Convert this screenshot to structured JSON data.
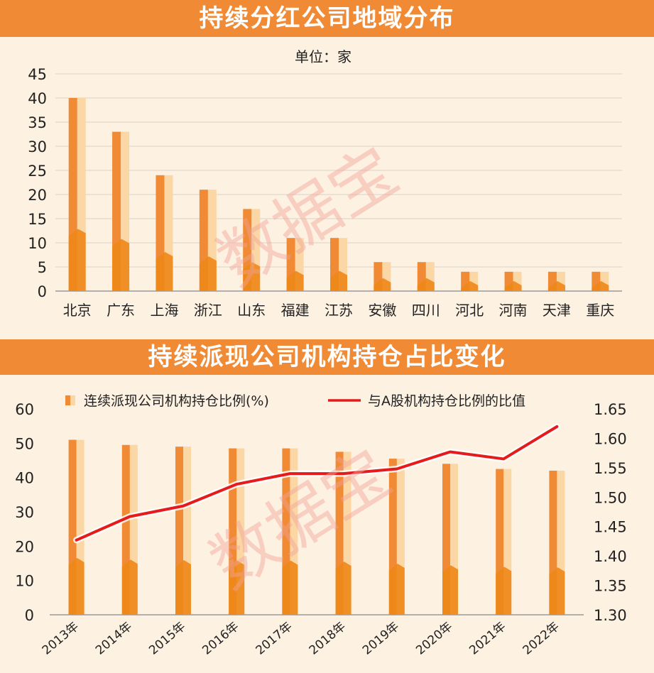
{
  "chart_data": [
    {
      "type": "bar",
      "title": "持续分红公司地域分布",
      "unit_label": "单位：家",
      "categories": [
        "北京",
        "广东",
        "上海",
        "浙江",
        "山东",
        "福建",
        "江苏",
        "安徽",
        "四川",
        "河北",
        "河南",
        "天津",
        "重庆"
      ],
      "values": [
        40,
        33,
        24,
        21,
        17,
        11,
        11,
        6,
        6,
        4,
        4,
        4,
        4
      ],
      "ylim": [
        0,
        45
      ],
      "yticks": [
        0,
        5,
        10,
        15,
        20,
        25,
        30,
        35,
        40,
        45
      ],
      "grid": true
    },
    {
      "type": "bar+line",
      "title": "持续派现公司机构持仓占比变化",
      "categories": [
        "2013年",
        "2014年",
        "2015年",
        "2016年",
        "2017年",
        "2018年",
        "2019年",
        "2020年",
        "2021年",
        "2022年"
      ],
      "series": [
        {
          "name": "连续派现公司机构持仓比例(%)",
          "type": "bar",
          "axis": "left",
          "values": [
            51,
            49.5,
            49,
            48.5,
            48.5,
            47.5,
            45.5,
            44,
            42.5,
            42
          ]
        },
        {
          "name": "与A股机构持仓比例的比值",
          "type": "line",
          "axis": "right",
          "values": [
            1.427,
            1.467,
            1.485,
            1.522,
            1.54,
            1.54,
            1.548,
            1.577,
            1.565,
            1.62
          ]
        }
      ],
      "ylim_left": [
        0,
        60
      ],
      "yticks_left": [
        0,
        10,
        20,
        30,
        40,
        50,
        60
      ],
      "ylim_right": [
        1.3,
        1.65
      ],
      "yticks_right": [
        "1.30",
        "1.35",
        "1.40",
        "1.45",
        "1.50",
        "1.55",
        "1.60",
        "1.65"
      ],
      "legend_position": "top"
    }
  ],
  "watermark": "数据宝",
  "colors": {
    "banner": "#f08a34",
    "background": "#fdf1e2",
    "bar_dark": "#f08a34",
    "bar_light": "#fbd7a5",
    "bar_base": "#ee8717",
    "line": "#e51b1b",
    "grid": "#d9d2c8"
  }
}
